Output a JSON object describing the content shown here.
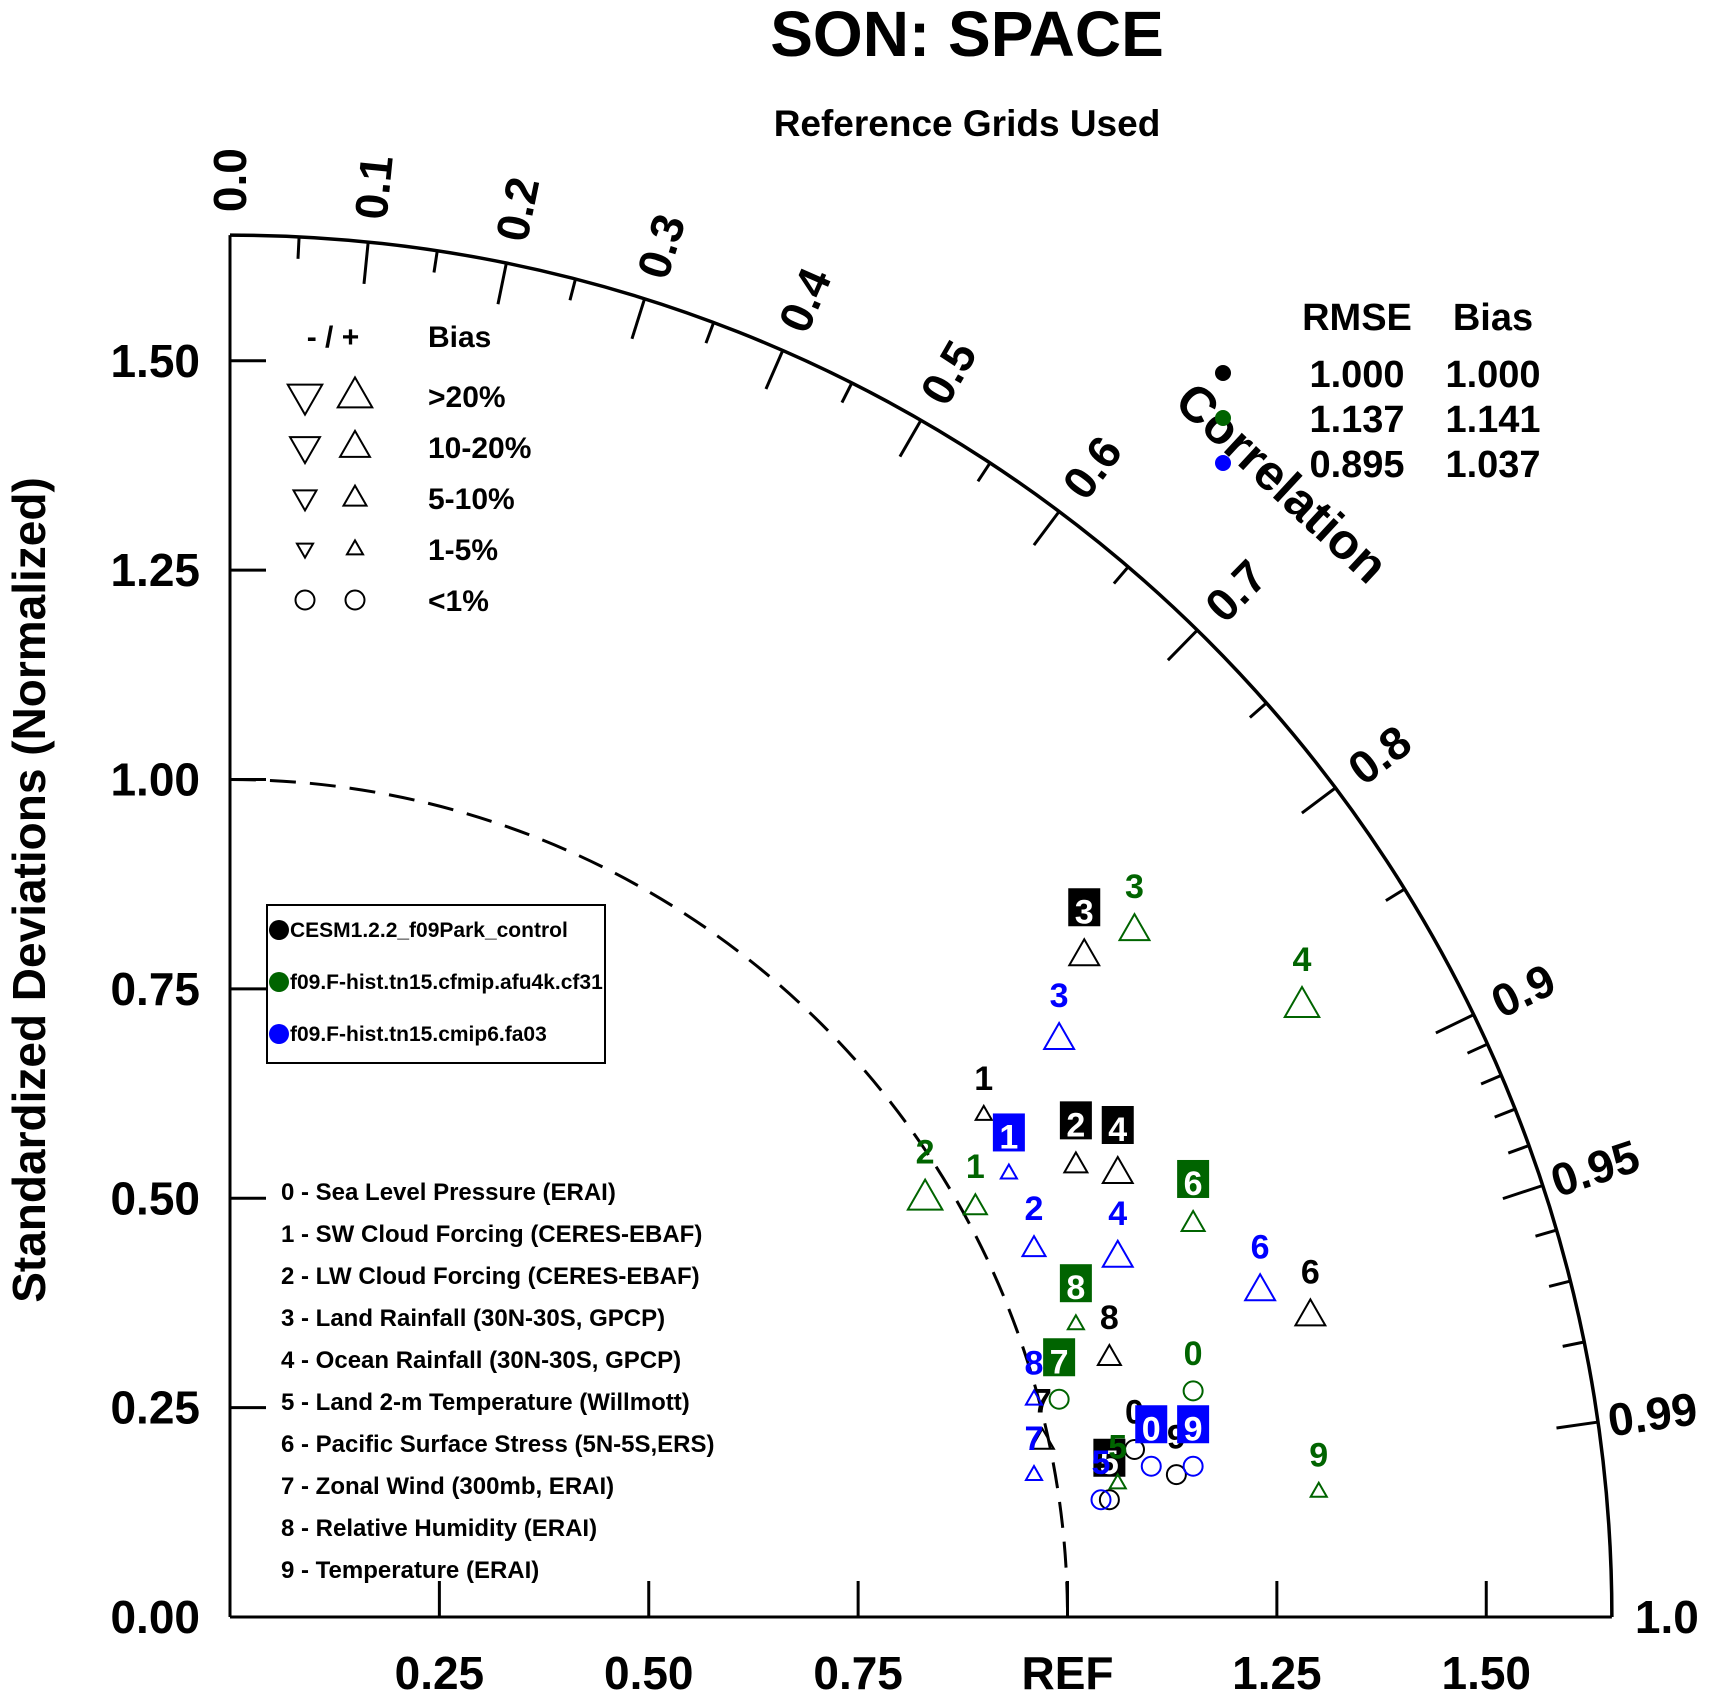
{
  "chart_data": {
    "type": "scatter",
    "subtype": "taylor-diagram",
    "title": "SON: SPACE",
    "subtitle": "Reference Grids Used",
    "ylabel": "Standardized Deviations (Normalized)",
    "arc_label": "Correlation",
    "ref_label": "REF",
    "std_range": [
      0,
      1.65
    ],
    "y_ticks": [
      "0.00",
      "0.25",
      "0.50",
      "0.75",
      "1.00",
      "1.25",
      "1.50"
    ],
    "x_ticks": [
      "0.25",
      "0.50",
      "0.75",
      "1.25",
      "1.50"
    ],
    "correlation_ticks": [
      "0.0",
      "0.1",
      "0.2",
      "0.3",
      "0.4",
      "0.5",
      "0.6",
      "0.7",
      "0.8",
      "0.9",
      "0.95",
      "0.99",
      "1.0"
    ],
    "bias_legend": {
      "header_sign": "- / +",
      "header_label": "Bias",
      "rows": [
        {
          "label": ">20%",
          "level": 4
        },
        {
          "label": "10-20%",
          "level": 3
        },
        {
          "label": "5-10%",
          "level": 2
        },
        {
          "label": "1-5%",
          "level": 1
        },
        {
          "label": "<1%",
          "level": 0
        }
      ]
    },
    "stats_table": {
      "headers": [
        "RMSE",
        "Bias"
      ],
      "rows": [
        {
          "color": "#000000",
          "rmse": "1.000",
          "bias": "1.000"
        },
        {
          "color": "#006400",
          "rmse": "1.137",
          "bias": "1.141"
        },
        {
          "color": "#0000ff",
          "rmse": "0.895",
          "bias": "1.037"
        }
      ]
    },
    "cases": [
      {
        "name": "CESM1.2.2_f09Park_control",
        "color": "#000000"
      },
      {
        "name": "f09.F-hist.tn15.cfmip.afu4k.cf31",
        "color": "#006400"
      },
      {
        "name": "f09.F-hist.tn15.cmip6.fa03",
        "color": "#0000ff"
      }
    ],
    "variables": [
      "0 - Sea Level Pressure (ERAI)",
      "1 - SW Cloud Forcing (CERES-EBAF)",
      "2 - LW Cloud Forcing (CERES-EBAF)",
      "3 - Land Rainfall (30N-30S, GPCP)",
      "4 - Ocean Rainfall (30N-30S, GPCP)",
      "5 - Land 2-m Temperature (Willmott)",
      "6 - Pacific Surface Stress (5N-5S,ERS)",
      "7 - Zonal Wind (300mb, ERAI)",
      "8 - Relative Humidity (ERAI)",
      "9 - Temperature (ERAI)"
    ],
    "series": [
      {
        "name": "CESM1.2.2_f09Park_control",
        "color": "#000000",
        "points": [
          {
            "label": "0",
            "x": 1.08,
            "y": 0.2,
            "marker": "circle",
            "size": 0,
            "boxed": false
          },
          {
            "label": "1",
            "x": 0.9,
            "y": 0.6,
            "marker": "up",
            "size": 1,
            "boxed": false
          },
          {
            "label": "2",
            "x": 1.01,
            "y": 0.54,
            "marker": "up",
            "size": 2,
            "boxed": true
          },
          {
            "label": "3",
            "x": 1.02,
            "y": 0.79,
            "marker": "up",
            "size": 3,
            "boxed": true
          },
          {
            "label": "4",
            "x": 1.06,
            "y": 0.53,
            "marker": "up",
            "size": 3,
            "boxed": true
          },
          {
            "label": "5",
            "x": 1.05,
            "y": 0.14,
            "marker": "circle",
            "size": 0,
            "boxed": true
          },
          {
            "label": "6",
            "x": 1.29,
            "y": 0.36,
            "marker": "up",
            "size": 3,
            "boxed": false
          },
          {
            "label": "7",
            "x": 0.97,
            "y": 0.21,
            "marker": "up",
            "size": 2,
            "boxed": false
          },
          {
            "label": "8",
            "x": 1.05,
            "y": 0.31,
            "marker": "up",
            "size": 2,
            "boxed": false
          },
          {
            "label": "9",
            "x": 1.13,
            "y": 0.17,
            "marker": "circle",
            "size": 0,
            "boxed": false
          }
        ]
      },
      {
        "name": "f09.F-hist.tn15.cfmip.afu4k.cf31",
        "color": "#006400",
        "points": [
          {
            "label": "0",
            "x": 1.15,
            "y": 0.27,
            "marker": "circle",
            "size": 0,
            "boxed": false
          },
          {
            "label": "1",
            "x": 0.89,
            "y": 0.49,
            "marker": "up",
            "size": 2,
            "boxed": false
          },
          {
            "label": "2",
            "x": 0.83,
            "y": 0.5,
            "marker": "up",
            "size": 4,
            "boxed": false
          },
          {
            "label": "3",
            "x": 1.08,
            "y": 0.82,
            "marker": "up",
            "size": 3,
            "boxed": false
          },
          {
            "label": "4",
            "x": 1.28,
            "y": 0.73,
            "marker": "up",
            "size": 4,
            "boxed": false
          },
          {
            "label": "5",
            "x": 1.06,
            "y": 0.16,
            "marker": "up",
            "size": 1,
            "boxed": false
          },
          {
            "label": "6",
            "x": 1.15,
            "y": 0.47,
            "marker": "up",
            "size": 2,
            "boxed": true
          },
          {
            "label": "7",
            "x": 0.99,
            "y": 0.26,
            "marker": "circle",
            "size": 0,
            "boxed": true
          },
          {
            "label": "8",
            "x": 1.01,
            "y": 0.35,
            "marker": "up",
            "size": 1,
            "boxed": true
          },
          {
            "label": "9",
            "x": 1.3,
            "y": 0.15,
            "marker": "up",
            "size": 1,
            "boxed": false
          }
        ]
      },
      {
        "name": "f09.F-hist.tn15.cmip6.fa03",
        "color": "#0000ff",
        "points": [
          {
            "label": "0",
            "x": 1.1,
            "y": 0.18,
            "marker": "circle",
            "size": 0,
            "boxed": true
          },
          {
            "label": "1",
            "x": 0.93,
            "y": 0.53,
            "marker": "up",
            "size": 1,
            "boxed": true
          },
          {
            "label": "2",
            "x": 0.96,
            "y": 0.44,
            "marker": "up",
            "size": 2,
            "boxed": false
          },
          {
            "label": "3",
            "x": 0.99,
            "y": 0.69,
            "marker": "up",
            "size": 3,
            "boxed": false
          },
          {
            "label": "4",
            "x": 1.06,
            "y": 0.43,
            "marker": "up",
            "size": 3,
            "boxed": false
          },
          {
            "label": "5",
            "x": 1.04,
            "y": 0.14,
            "marker": "circle",
            "size": 0,
            "boxed": false
          },
          {
            "label": "6",
            "x": 1.23,
            "y": 0.39,
            "marker": "up",
            "size": 3,
            "boxed": false
          },
          {
            "label": "7",
            "x": 0.96,
            "y": 0.17,
            "marker": "up",
            "size": 1,
            "boxed": false
          },
          {
            "label": "8",
            "x": 0.96,
            "y": 0.26,
            "marker": "up",
            "size": 1,
            "boxed": false
          },
          {
            "label": "9",
            "x": 1.15,
            "y": 0.18,
            "marker": "circle",
            "size": 0,
            "boxed": true
          }
        ]
      }
    ]
  }
}
